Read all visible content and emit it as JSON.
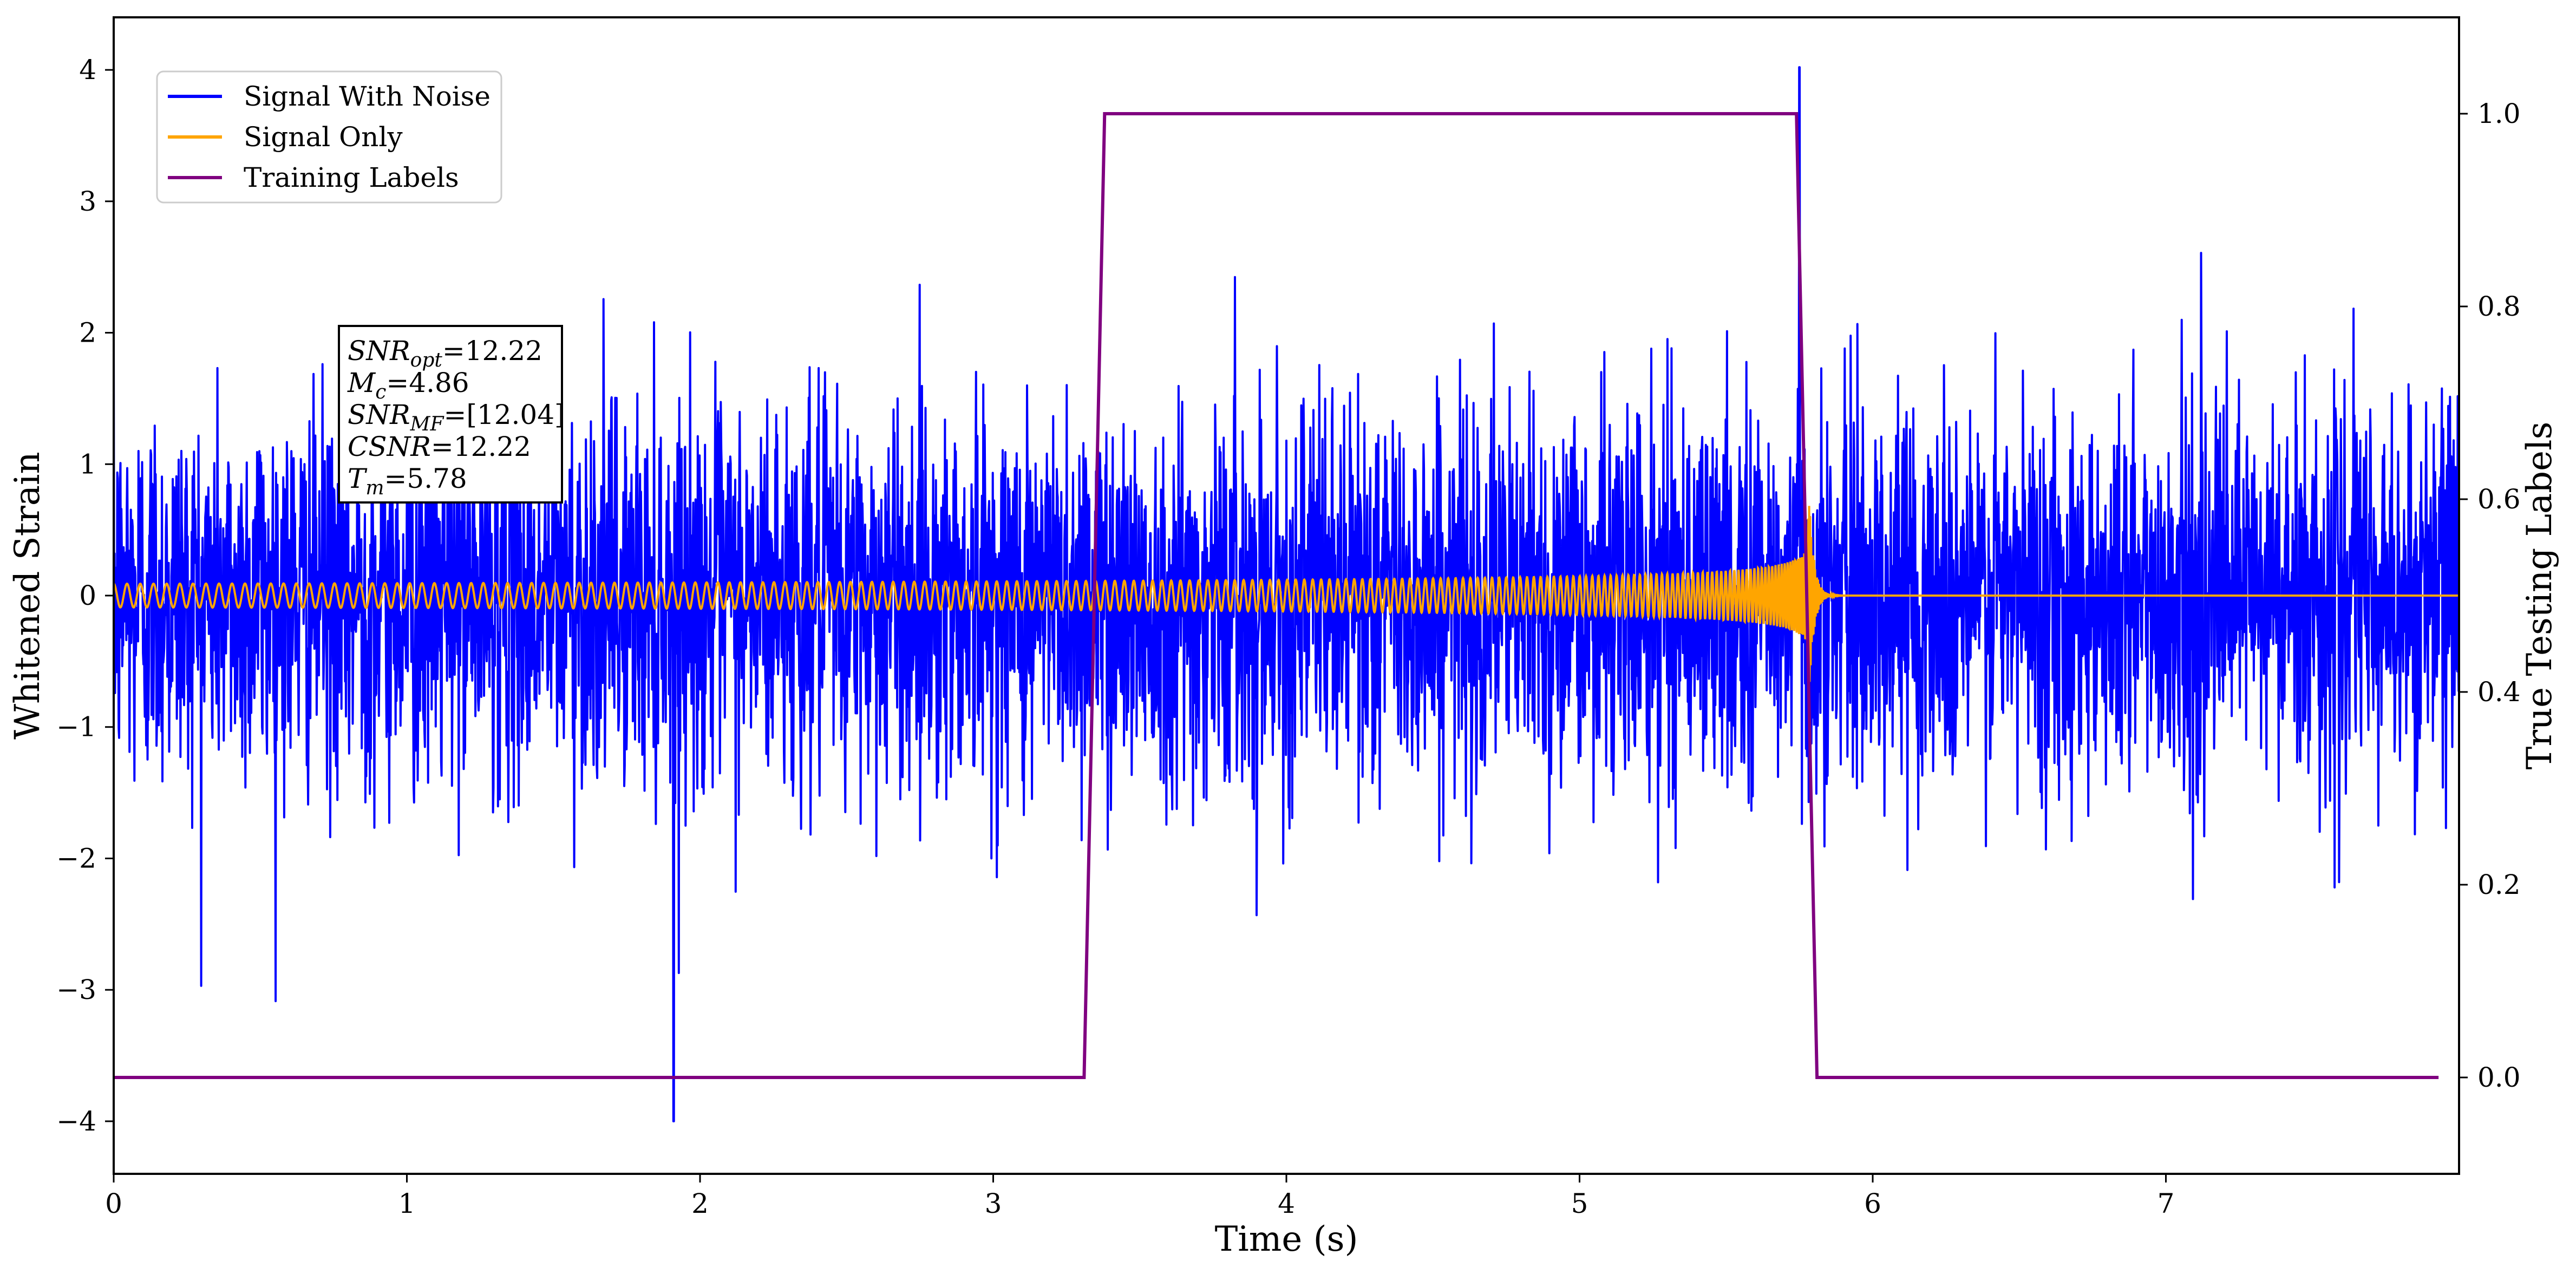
{
  "chart_data": {
    "type": "line",
    "xlabel": "Time (s)",
    "ylabel": "Whitened Strain",
    "ylabel_right": "True Testing Labels",
    "xlim": [
      0,
      8
    ],
    "ylim": [
      -4.4,
      4.4
    ],
    "ylim_right": [
      -0.1,
      1.1
    ],
    "xticks": [
      "0",
      "1",
      "2",
      "3",
      "4",
      "5",
      "6",
      "7"
    ],
    "yticks_left": [
      "4",
      "3",
      "2",
      "1",
      "0",
      "−1",
      "−2",
      "−3",
      "−4"
    ],
    "yticks_right": [
      "1.0",
      "0.8",
      "0.6",
      "0.4",
      "0.2",
      "0.0"
    ],
    "grid": false,
    "legend_position": "top-left",
    "series": [
      {
        "name": "Signal With Noise",
        "color": "#0000ff",
        "description_values": {
          "noise_std": 0.72,
          "peak_max": 4.02,
          "peak_max_time": 5.75,
          "peak_min": -4.0,
          "peak_min_time": 1.91
        }
      },
      {
        "name": "Signal Only",
        "color": "#ffa500",
        "chirp": {
          "start_time": 0.0,
          "merger_time": 5.78,
          "start_amplitude": 0.09,
          "peak_amplitude": 1.0,
          "start_cycles_per_second": 22
        }
      },
      {
        "name": "Training Labels",
        "color": "#800080",
        "axis": "right",
        "x": [
          0.0,
          3.31,
          3.38,
          5.74,
          5.81,
          7.93
        ],
        "y": [
          0.0,
          0.0,
          1.0,
          1.0,
          0.0,
          0.0
        ]
      }
    ],
    "annotation": {
      "lines": [
        {
          "base": "SNR",
          "sub": "opt",
          "value": "=12.22"
        },
        {
          "base": "M",
          "sub": "c",
          "value": "=4.86"
        },
        {
          "base": "SNR",
          "sub": "MF",
          "value": "=[12.04]"
        },
        {
          "base": "CSNR",
          "sub": "",
          "value": "=12.22"
        },
        {
          "base": "T",
          "sub": "m",
          "value": "=5.78"
        }
      ]
    }
  }
}
